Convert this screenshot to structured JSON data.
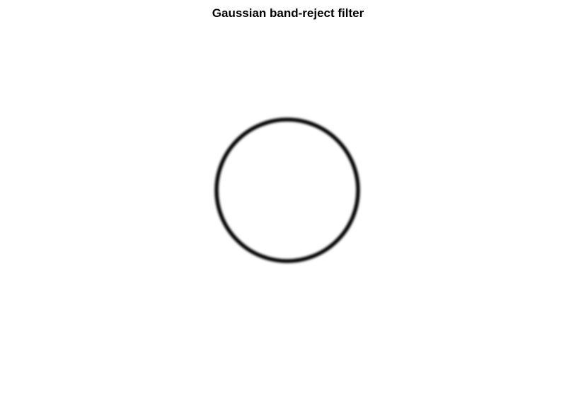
{
  "figure": {
    "title": "Gaussian band-reject filter"
  },
  "colors": {
    "background": "#ffffff",
    "band": "#000000"
  }
}
